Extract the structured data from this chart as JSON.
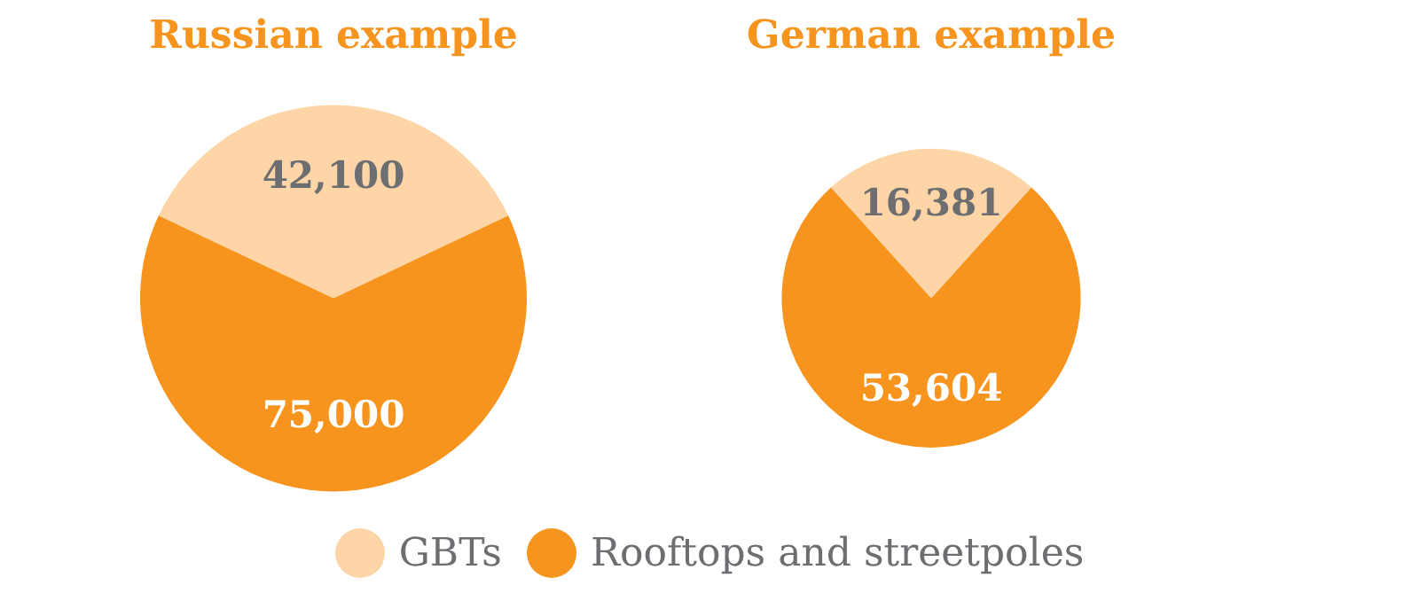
{
  "chart_data": [
    {
      "type": "pie",
      "title": "Russian example",
      "categories": [
        "GBTs",
        "Rooftops and streetpoles"
      ],
      "values": [
        42100,
        75000
      ],
      "value_labels": [
        "42,100",
        "75,000"
      ],
      "colors": [
        "#fdd5a6",
        "#f7941d"
      ],
      "legend": "bottom"
    },
    {
      "type": "pie",
      "title": "German example",
      "categories": [
        null,
        null
      ],
      "values": [
        16381,
        53604
      ],
      "value_labels": [
        "16,381",
        "53,604"
      ],
      "colors": [
        "#fdd5a6",
        "#f7941d"
      ]
    }
  ]
}
